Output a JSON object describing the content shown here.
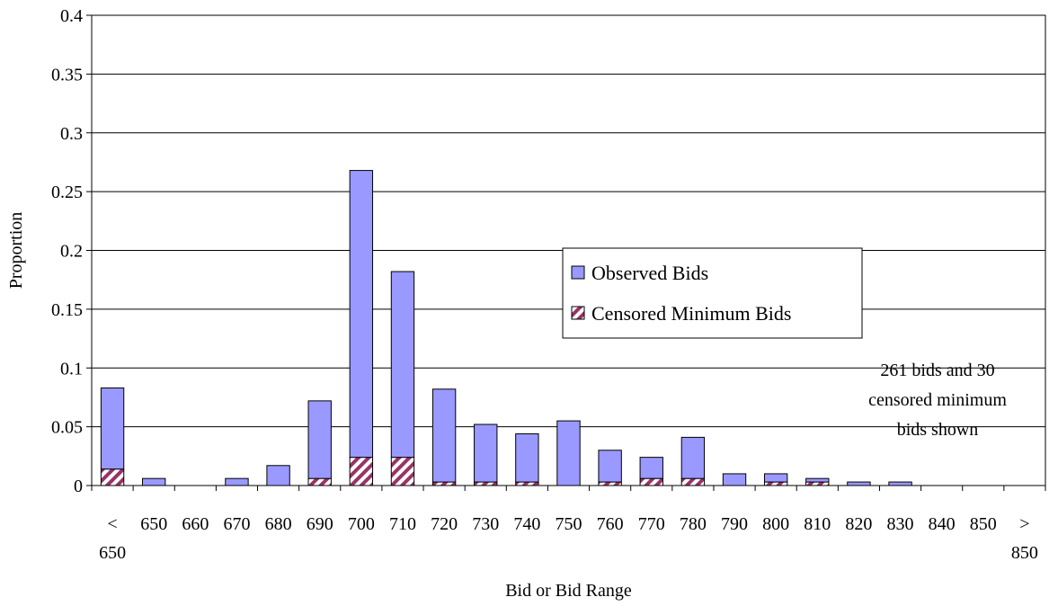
{
  "chart_data": {
    "type": "bar",
    "stacked": true,
    "title": "",
    "xlabel": "Bid or Bid Range",
    "ylabel": "Proportion",
    "ylim": [
      0,
      0.4
    ],
    "yticks": [
      "0",
      "0.05",
      "0.1",
      "0.15",
      "0.2",
      "0.25",
      "0.3",
      "0.35",
      "0.4"
    ],
    "grid": "horizontal",
    "legend_position": "center-right",
    "categories": [
      "< 650",
      "650",
      "660",
      "670",
      "680",
      "690",
      "700",
      "710",
      "720",
      "730",
      "740",
      "750",
      "760",
      "770",
      "780",
      "790",
      "800",
      "810",
      "820",
      "830",
      "840",
      "850",
      "> 850"
    ],
    "category_lines": [
      [
        "<",
        "650"
      ],
      [
        "650"
      ],
      [
        "660"
      ],
      [
        "670"
      ],
      [
        "680"
      ],
      [
        "690"
      ],
      [
        "700"
      ],
      [
        "710"
      ],
      [
        "720"
      ],
      [
        "730"
      ],
      [
        "740"
      ],
      [
        "750"
      ],
      [
        "760"
      ],
      [
        "770"
      ],
      [
        "780"
      ],
      [
        "790"
      ],
      [
        "800"
      ],
      [
        "810"
      ],
      [
        "820"
      ],
      [
        "830"
      ],
      [
        "840"
      ],
      [
        "850"
      ],
      [
        ">",
        "850"
      ]
    ],
    "series": [
      {
        "name": "Observed Bids",
        "color": "#9999ff",
        "pattern": "solid",
        "values": [
          0.069,
          0.006,
          0,
          0.006,
          0.017,
          0.066,
          0.244,
          0.158,
          0.079,
          0.049,
          0.041,
          0.055,
          0.027,
          0.018,
          0.035,
          0.01,
          0.007,
          0.003,
          0.003,
          0.003,
          0,
          0,
          0
        ]
      },
      {
        "name": "Censored Minimum Bids",
        "color": "#993366",
        "pattern": "diagonal-hatch",
        "values": [
          0.014,
          0,
          0,
          0,
          0,
          0.006,
          0.024,
          0.024,
          0.003,
          0.003,
          0.003,
          0,
          0.003,
          0.006,
          0.006,
          0,
          0.003,
          0.003,
          0,
          0,
          0,
          0,
          0
        ]
      }
    ],
    "annotation_lines": [
      "261 bids and 30",
      "censored minimum",
      "bids shown"
    ]
  }
}
